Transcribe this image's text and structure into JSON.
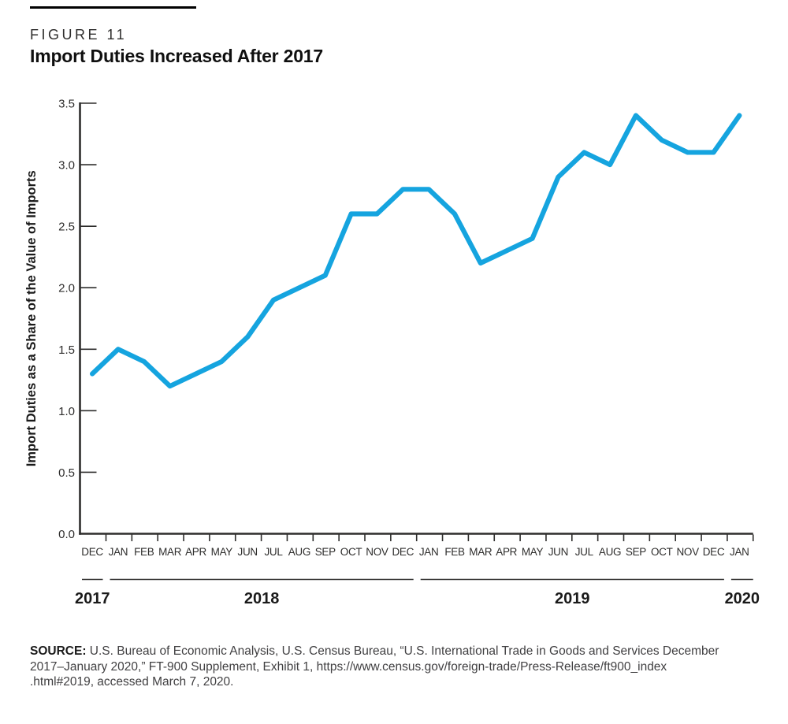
{
  "figure": {
    "label": "FIGURE 11",
    "title": "Import Duties Increased After 2017"
  },
  "chart_data": {
    "type": "line",
    "title": "Import Duties Increased After 2017",
    "xlabel": "",
    "ylabel": "Import Duties as a Share of the Value of Imports",
    "ylim": [
      0,
      3.5
    ],
    "ytick_step": 0.5,
    "ytick_labels": [
      "0.0",
      "0.5",
      "1.0",
      "1.5",
      "2.0",
      "2.5",
      "3.0",
      "3.5"
    ],
    "grid": false,
    "legend_position": "none",
    "categories": [
      "DEC",
      "JAN",
      "FEB",
      "MAR",
      "APR",
      "MAY",
      "JUN",
      "JUL",
      "AUG",
      "SEP",
      "OCT",
      "NOV",
      "DEC",
      "JAN",
      "FEB",
      "MAR",
      "APR",
      "MAY",
      "JUN",
      "JUL",
      "AUG",
      "SEP",
      "OCT",
      "NOV",
      "DEC",
      "JAN"
    ],
    "years": [
      {
        "label": "2017",
        "start": 0,
        "count": 1
      },
      {
        "label": "2018",
        "start": 1,
        "count": 12
      },
      {
        "label": "2019",
        "start": 13,
        "count": 12
      },
      {
        "label": "2020",
        "start": 25,
        "count": 1
      }
    ],
    "series": [
      {
        "name": "Import duties as a share of the value of imports",
        "values": [
          1.3,
          1.5,
          1.4,
          1.2,
          1.3,
          1.4,
          1.6,
          1.9,
          2.0,
          2.1,
          2.6,
          2.6,
          2.8,
          2.8,
          2.6,
          2.2,
          2.3,
          2.4,
          2.9,
          3.1,
          3.0,
          3.4,
          3.2,
          3.1,
          3.1,
          3.4
        ]
      }
    ],
    "line_color": "#15A4DF",
    "axis_color": "#2e2d2c",
    "label_color": "#2e2d2c",
    "year_label_color": "#1a1a1a"
  },
  "source": {
    "label": "SOURCE:",
    "lines": [
      "U.S. Bureau of Economic Analysis, U.S. Census Bureau, “U.S. International Trade in Goods and Services December",
      "2017–January 2020,” FT-900 Supplement, Exhibit 1, https://www.census.gov/foreign-trade/Press-Release/ft900_index",
      ".html#2019, accessed March 7, 2020."
    ]
  }
}
